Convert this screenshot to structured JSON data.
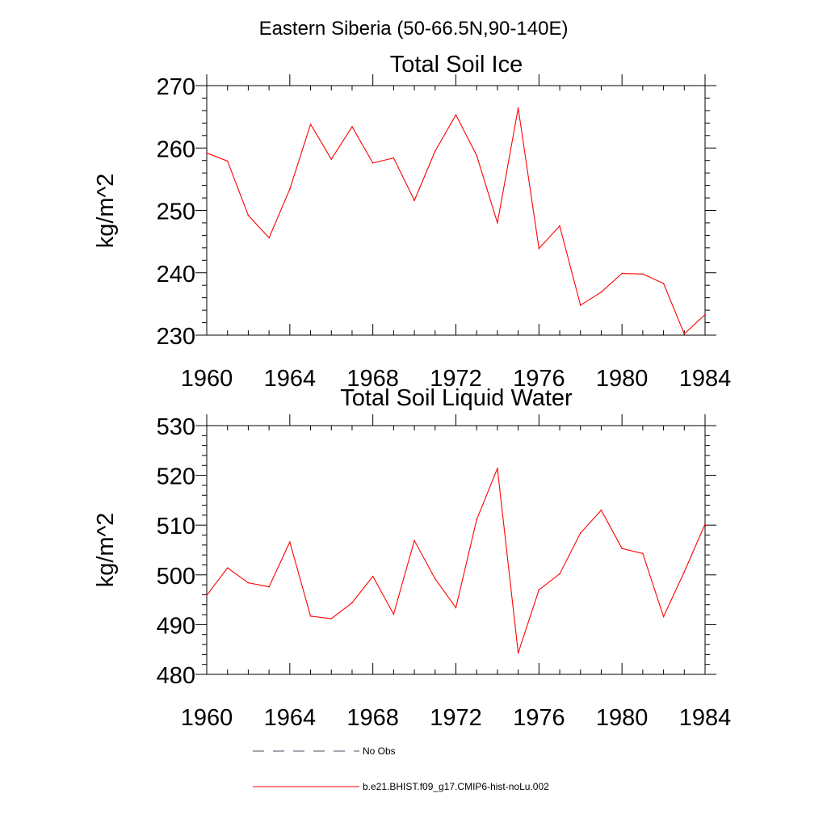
{
  "suptitle": "Eastern Siberia (50-66.5N,90-140E)",
  "chart_data": [
    {
      "type": "line",
      "title": "Total Soil Ice",
      "ylabel": "kg/m^2",
      "xlabel": "",
      "xlim": [
        1960,
        1984
      ],
      "ylim": [
        230,
        270
      ],
      "xticks": [
        1960,
        1964,
        1968,
        1972,
        1976,
        1980,
        1984
      ],
      "yticks": [
        230,
        240,
        250,
        260,
        270
      ],
      "grid": false,
      "x": [
        1960,
        1961,
        1962,
        1963,
        1964,
        1965,
        1966,
        1967,
        1968,
        1969,
        1970,
        1971,
        1972,
        1973,
        1974,
        1975,
        1976,
        1977,
        1978,
        1979,
        1980,
        1981,
        1982,
        1983,
        1984
      ],
      "series": [
        {
          "name": "b.e21.BHIST.f09_g17.CMIP6-hist-noLu.002",
          "color": "#ff0000",
          "values": [
            259.2,
            257.9,
            249.2,
            245.6,
            253.4,
            263.8,
            258.2,
            263.4,
            257.6,
            258.4,
            251.6,
            259.5,
            265.3,
            258.8,
            248.0,
            266.4,
            243.9,
            247.5,
            234.8,
            236.9,
            239.9,
            239.8,
            238.3,
            230.2,
            233.3
          ]
        }
      ]
    },
    {
      "type": "line",
      "title": "Total Soil Liquid Water",
      "ylabel": "kg/m^2",
      "xlabel": "",
      "xlim": [
        1960,
        1984
      ],
      "ylim": [
        480,
        530
      ],
      "xticks": [
        1960,
        1964,
        1968,
        1972,
        1976,
        1980,
        1984
      ],
      "yticks": [
        480,
        490,
        500,
        510,
        520,
        530
      ],
      "grid": false,
      "x": [
        1960,
        1961,
        1962,
        1963,
        1964,
        1965,
        1966,
        1967,
        1968,
        1969,
        1970,
        1971,
        1972,
        1973,
        1974,
        1975,
        1976,
        1977,
        1978,
        1979,
        1980,
        1981,
        1982,
        1983,
        1984
      ],
      "series": [
        {
          "name": "b.e21.BHIST.f09_g17.CMIP6-hist-noLu.002",
          "color": "#ff0000",
          "values": [
            495.9,
            501.4,
            498.4,
            497.6,
            506.6,
            491.7,
            491.2,
            494.4,
            499.7,
            492.1,
            506.9,
            499.2,
            493.4,
            511.1,
            521.4,
            484.3,
            497.0,
            500.2,
            508.4,
            513.0,
            505.3,
            504.3,
            491.6,
            500.6,
            510.2
          ]
        }
      ]
    }
  ],
  "legend": {
    "placement": "bottom",
    "entries": [
      {
        "label": "No Obs",
        "color": "#4a4a66",
        "style": "dashed"
      },
      {
        "label": "b.e21.BHIST.f09_g17.CMIP6-hist-noLu.002",
        "color": "#ff0000",
        "style": "solid"
      }
    ]
  }
}
